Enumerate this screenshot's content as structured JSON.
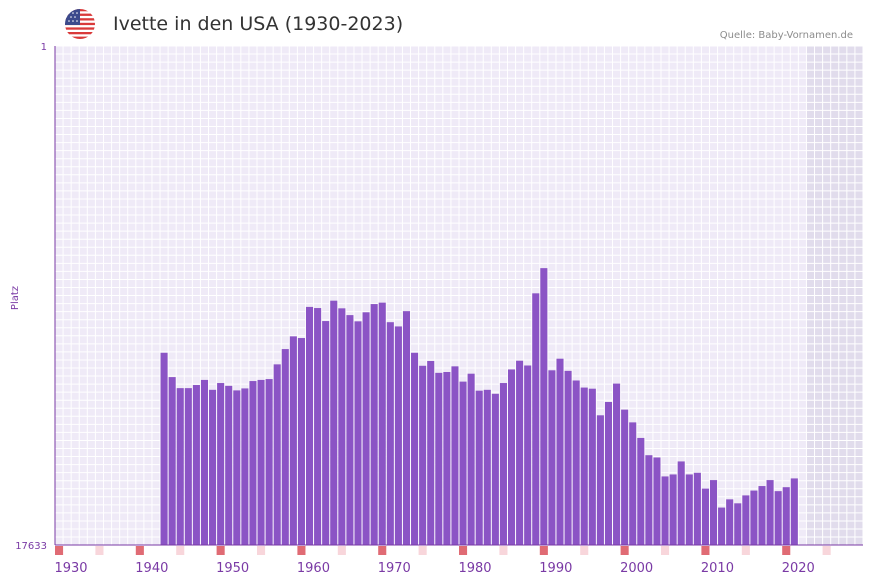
{
  "header": {
    "title": "Ivette in den USA (1930-2023)",
    "source": "Quelle: Baby-Vornamen.de",
    "flag_icon": "usa-flag-icon"
  },
  "colors": {
    "bar": "#8b54c5",
    "plot_bg": "#efeaf7",
    "grid": "#ffffff",
    "future_bg": "#e1dcec",
    "axis": "#7a3aa5",
    "label": "#7a3aa5",
    "marker_strong": "#e06b74",
    "marker_light": "#f8d6db"
  },
  "chart_data": {
    "type": "bar",
    "title": "Ivette in den USA (1930-2023)",
    "xlabel": "",
    "ylabel": "Platz",
    "y_axis_inverted": true,
    "ylim": [
      1,
      17633
    ],
    "y_ticks": [
      "1",
      "17633"
    ],
    "x_ticks": [
      "1930",
      "1940",
      "1950",
      "1960",
      "1970",
      "1980",
      "1990",
      "2000",
      "2010",
      "2020"
    ],
    "x_range": [
      1930,
      2030
    ],
    "future_from_year": 2023,
    "years": [
      1943,
      1944,
      1945,
      1946,
      1947,
      1948,
      1949,
      1950,
      1951,
      1952,
      1953,
      1954,
      1955,
      1956,
      1957,
      1958,
      1959,
      1960,
      1961,
      1962,
      1963,
      1964,
      1965,
      1966,
      1967,
      1968,
      1969,
      1970,
      1971,
      1972,
      1973,
      1974,
      1975,
      1976,
      1977,
      1978,
      1979,
      1980,
      1981,
      1982,
      1983,
      1984,
      1985,
      1986,
      1987,
      1988,
      1989,
      1990,
      1991,
      1992,
      1993,
      1994,
      1995,
      1996,
      1997,
      1998,
      1999,
      2000,
      2001,
      2002,
      2003,
      2004,
      2005,
      2006,
      2007,
      2008,
      2009,
      2010,
      2011,
      2012,
      2013,
      2014,
      2015,
      2016,
      2017,
      2018,
      2019,
      2020,
      2021,
      2022
    ],
    "values": [
      10840,
      11700,
      12090,
      12090,
      11980,
      11800,
      12150,
      11910,
      12010,
      12170,
      12100,
      11840,
      11800,
      11770,
      11250,
      10710,
      10260,
      10320,
      9220,
      9260,
      9720,
      9000,
      9270,
      9510,
      9730,
      9410,
      9120,
      9070,
      9760,
      9910,
      9370,
      10840,
      11300,
      11130,
      11550,
      11520,
      11320,
      11860,
      11580,
      12180,
      12150,
      12290,
      11910,
      11430,
      11120,
      11290,
      8740,
      7850,
      11460,
      11050,
      11480,
      11820,
      12070,
      12110,
      13050,
      12580,
      11930,
      12850,
      13300,
      13850,
      14460,
      14540,
      15210,
      15140,
      14680,
      15140,
      15080,
      15640,
      15340,
      16310,
      16020,
      16160,
      15880,
      15710,
      15550,
      15340,
      15730,
      15590,
      15280,
      17633
    ]
  }
}
